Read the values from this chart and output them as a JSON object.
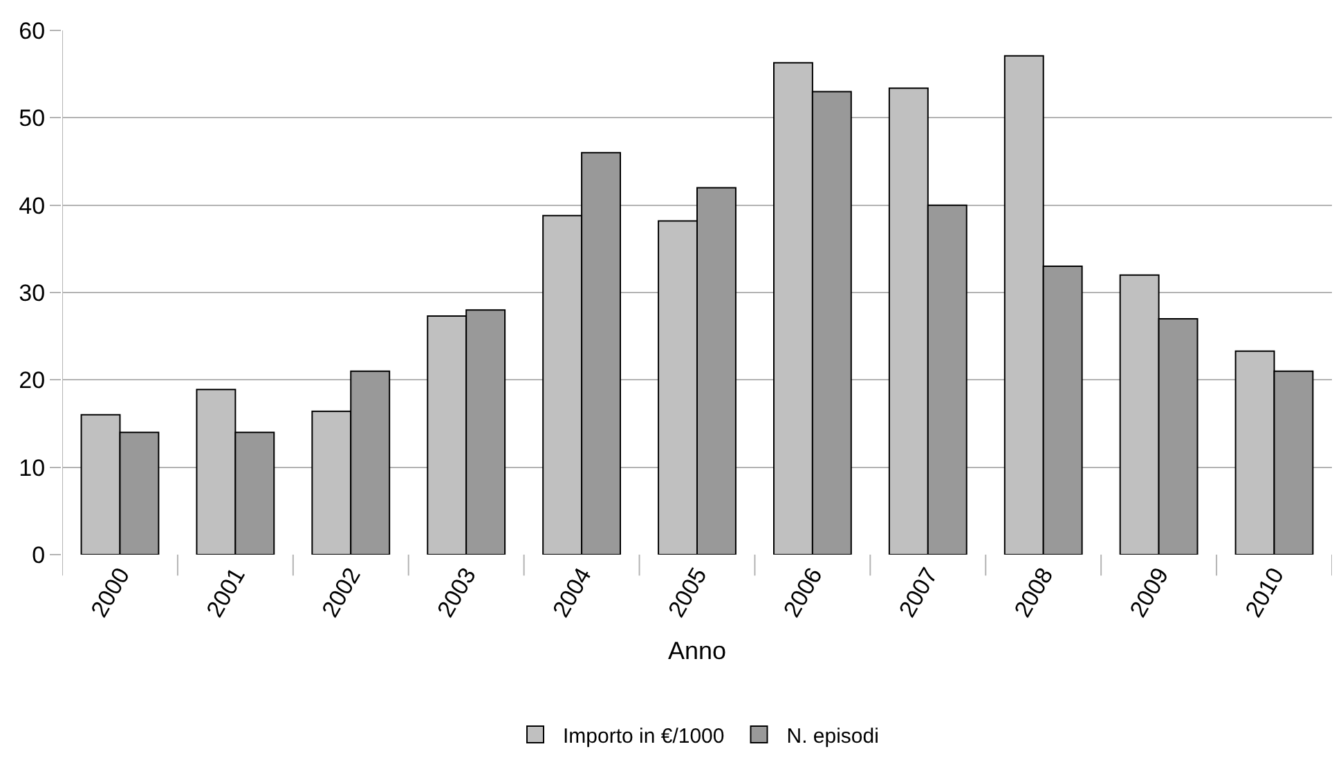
{
  "chart_data": {
    "type": "bar",
    "xlabel": "Anno",
    "categories": [
      "2000",
      "2001",
      "2002",
      "2003",
      "2004",
      "2005",
      "2006",
      "2007",
      "2008",
      "2009",
      "2010"
    ],
    "series": [
      {
        "name": "Importo in €/1000",
        "color": "#c0c0c0",
        "values": [
          16.0,
          18.9,
          16.4,
          27.3,
          38.8,
          38.2,
          56.3,
          53.4,
          57.1,
          32.0,
          23.3
        ]
      },
      {
        "name": "N. episodi",
        "color": "#999999",
        "values": [
          14,
          14,
          21,
          28,
          46,
          42,
          53,
          40,
          33,
          27,
          21
        ]
      }
    ],
    "ylim": [
      0,
      60
    ],
    "yticks": [
      0,
      10,
      20,
      30,
      40,
      50,
      60
    ],
    "grid": "y",
    "legend": "bottom"
  }
}
